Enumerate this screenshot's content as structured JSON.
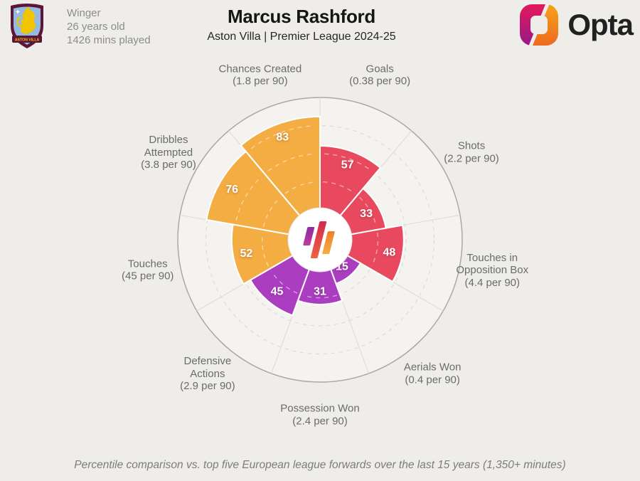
{
  "header": {
    "position": "Winger",
    "age": "26 years old",
    "minutes": "1426 mins played",
    "title": "Marcus Rashford",
    "subtitle": "Aston Villa | Premier League 2024-25",
    "crest_banner": "ASTON VILLA",
    "brand": "Opta"
  },
  "footer": {
    "note": "Percentile comparison vs. top five European league forwards over the last 15 years (1,350+ minutes)"
  },
  "palette": {
    "attacking_red": "#E8495F",
    "possession_orange": "#F4AD42",
    "defending_purple": "#AB3DC0",
    "background": "#EEEDEA",
    "chart_fill": "#F4F3F0"
  },
  "chart_data": {
    "type": "bar",
    "variant": "polar-percentile-pizza",
    "title": "Marcus Rashford",
    "subtitle": "Aston Villa | Premier League 2024-25",
    "footnote": "Percentile comparison vs. top five European league forwards over the last 15 years (1,350+ minutes)",
    "scale": {
      "min": 0,
      "max": 100,
      "gridlines_pct": [
        25,
        50,
        75,
        100
      ]
    },
    "start": "Goals sector begins at 12 o'clock, sectors run clockwise, 40 degrees each",
    "categories": [
      {
        "label": "Goals",
        "label_lines": [
          "Goals"
        ],
        "sublabel": "(0.38 per 90)",
        "value": 57,
        "group": "attacking",
        "color": "#E8495F"
      },
      {
        "label": "Shots",
        "label_lines": [
          "Shots"
        ],
        "sublabel": "(2.2 per 90)",
        "value": 33,
        "group": "attacking",
        "color": "#E8495F"
      },
      {
        "label": "Touches in Opposition Box",
        "label_lines": [
          "Touches in",
          "Opposition Box"
        ],
        "sublabel": "(4.4 per 90)",
        "value": 48,
        "group": "attacking",
        "color": "#E8495F"
      },
      {
        "label": "Aerials Won",
        "label_lines": [
          "Aerials Won"
        ],
        "sublabel": "(0.4 per 90)",
        "value": 15,
        "group": "defending",
        "color": "#AB3DC0"
      },
      {
        "label": "Possession Won",
        "label_lines": [
          "Possession Won"
        ],
        "sublabel": "(2.4 per 90)",
        "value": 31,
        "group": "defending",
        "color": "#AB3DC0"
      },
      {
        "label": "Defensive Actions",
        "label_lines": [
          "Defensive",
          "Actions"
        ],
        "sublabel": "(2.9 per 90)",
        "value": 45,
        "group": "defending",
        "color": "#AB3DC0"
      },
      {
        "label": "Touches",
        "label_lines": [
          "Touches"
        ],
        "sublabel": "(45 per 90)",
        "value": 52,
        "group": "possession",
        "color": "#F4AD42"
      },
      {
        "label": "Dribbles Attempted",
        "label_lines": [
          "Dribbles",
          "Attempted"
        ],
        "sublabel": "(3.8 per 90)",
        "value": 76,
        "group": "possession",
        "color": "#F4AD42"
      },
      {
        "label": "Chances Created",
        "label_lines": [
          "Chances Created"
        ],
        "sublabel": "(1.8 per 90)",
        "value": 83,
        "group": "possession",
        "color": "#F4AD42"
      }
    ]
  }
}
